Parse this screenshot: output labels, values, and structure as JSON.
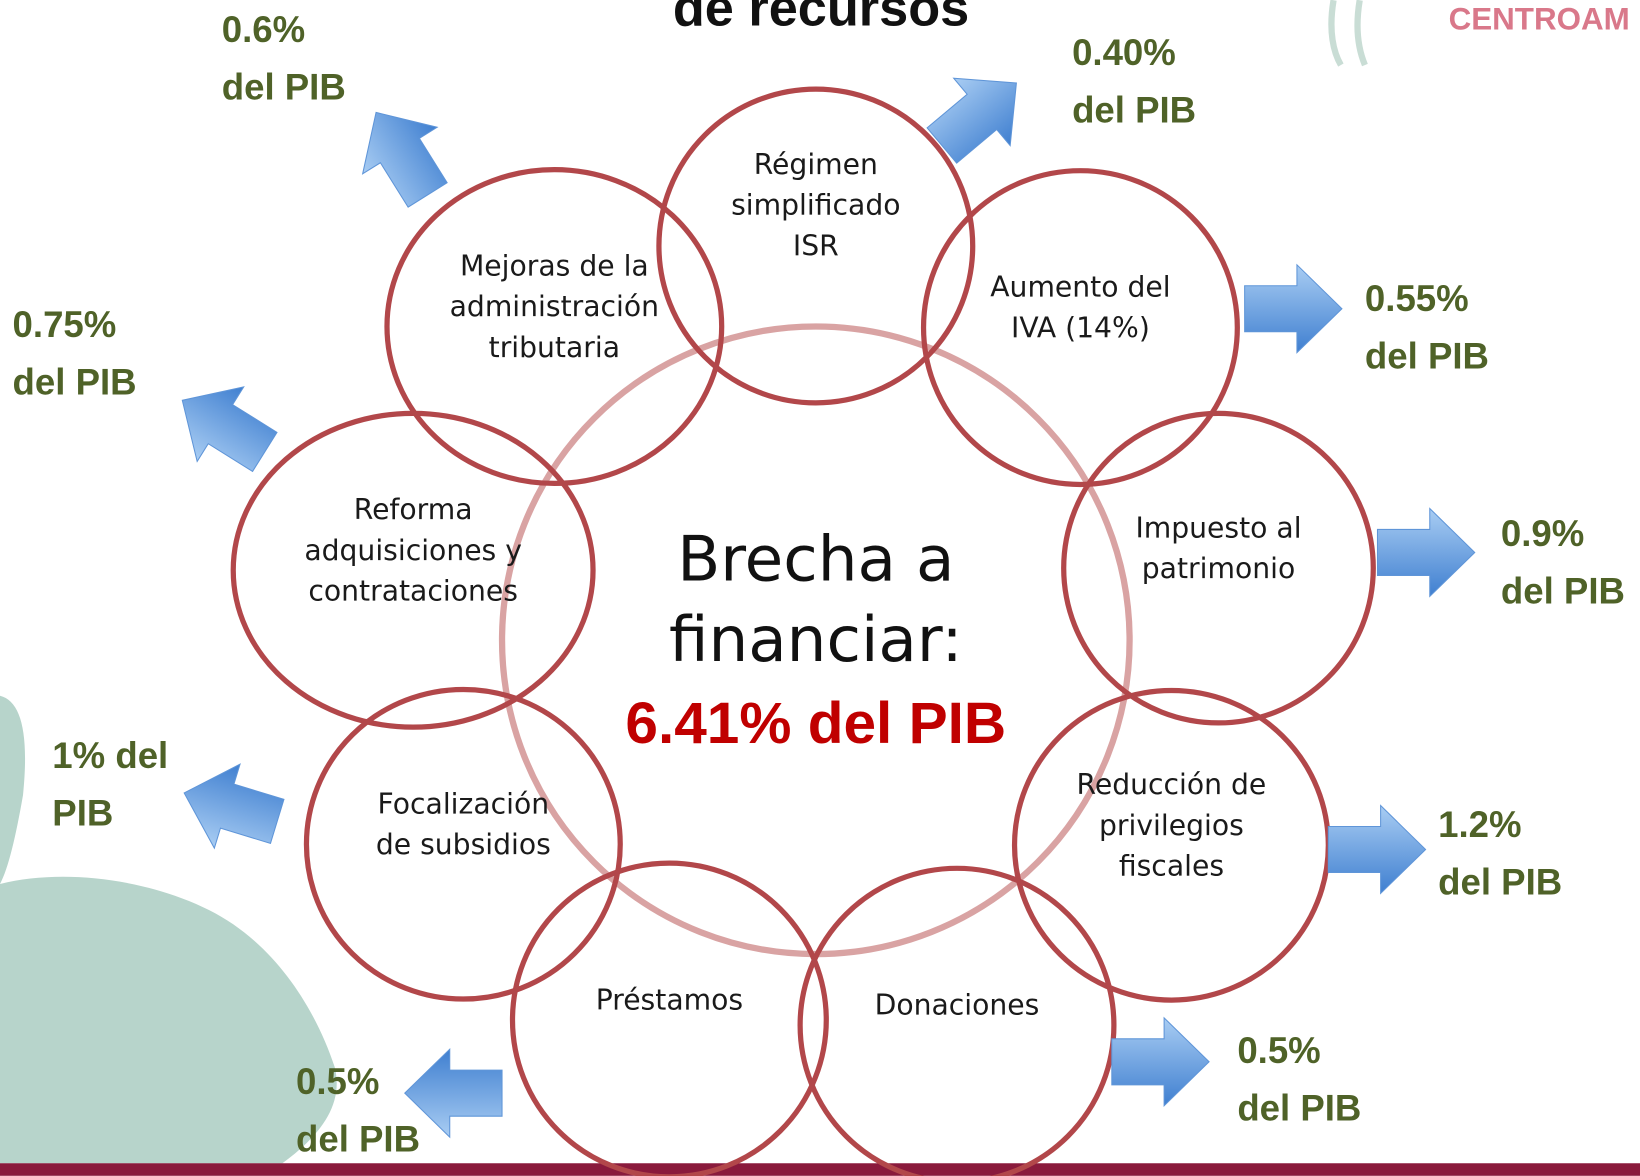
{
  "title": "de recursos",
  "logo": "CENTROAM",
  "center": {
    "lines": [
      "Brecha a",
      "financiar:"
    ],
    "highlight": "6.41% del PIB"
  },
  "nodes": [
    {
      "label": [
        "Régimen",
        "simplificado",
        "ISR"
      ],
      "value": [
        "0.40%",
        "del PIB"
      ]
    },
    {
      "label": [
        "Aumento del",
        "IVA (14%)"
      ],
      "value": [
        "0.55%",
        "del PIB"
      ]
    },
    {
      "label": [
        "Impuesto al",
        "patrimonio"
      ],
      "value": [
        "0.9%",
        "del PIB"
      ]
    },
    {
      "label": [
        "Reducción de",
        "privilegios",
        "fiscales"
      ],
      "value": [
        "1.2%",
        "del PIB"
      ]
    },
    {
      "label": [
        "Donaciones"
      ],
      "value": [
        "0.5%",
        "del PIB"
      ]
    },
    {
      "label": [
        "Préstamos"
      ],
      "value": [
        "0.5%",
        "del PIB"
      ]
    },
    {
      "label": [
        "Focalización",
        "de subsidios"
      ],
      "value": [
        "1% del",
        "PIB"
      ]
    },
    {
      "label": [
        "Reforma",
        "adquisiciones y",
        "contrataciones"
      ],
      "value": [
        "0.75%",
        "del PIB"
      ]
    },
    {
      "label": [
        "Mejoras de la",
        "administración",
        "tributaria"
      ],
      "value": [
        "0.6%",
        "del PIB"
      ]
    }
  ]
}
